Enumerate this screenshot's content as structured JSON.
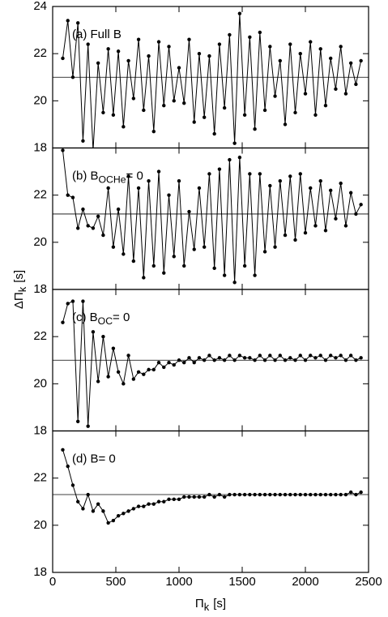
{
  "chart_data": [
    {
      "type": "line",
      "label": {
        "text": "(a) Full B"
      },
      "reference_line": 21.0,
      "ylim": [
        18,
        24
      ],
      "yticks": [
        18,
        20,
        22,
        24
      ],
      "x": [
        80,
        120,
        160,
        200,
        240,
        280,
        320,
        360,
        400,
        440,
        480,
        520,
        560,
        600,
        640,
        680,
        720,
        760,
        800,
        840,
        880,
        920,
        960,
        1000,
        1040,
        1080,
        1120,
        1160,
        1200,
        1240,
        1280,
        1320,
        1360,
        1400,
        1440,
        1480,
        1520,
        1560,
        1600,
        1640,
        1680,
        1720,
        1760,
        1800,
        1840,
        1880,
        1920,
        1960,
        2000,
        2040,
        2080,
        2120,
        2160,
        2200,
        2240,
        2280,
        2320,
        2360,
        2400,
        2440
      ],
      "series": [
        {
          "color": "#000000",
          "values": [
            21.8,
            23.4,
            21.0,
            23.3,
            18.3,
            22.4,
            17.9,
            21.6,
            19.5,
            22.2,
            19.4,
            22.1,
            18.9,
            21.7,
            20.1,
            22.6,
            19.6,
            21.9,
            18.7,
            22.5,
            19.8,
            22.3,
            20.0,
            21.4,
            19.9,
            22.6,
            19.1,
            22.0,
            19.3,
            21.9,
            18.6,
            22.4,
            19.7,
            22.8,
            18.2,
            23.7,
            19.4,
            22.7,
            18.8,
            22.9,
            19.6,
            22.3,
            20.2,
            21.7,
            19.0,
            22.4,
            19.5,
            22.0,
            20.3,
            22.5,
            19.4,
            22.2,
            19.8,
            21.8,
            20.5,
            22.3,
            20.3,
            21.6,
            20.7,
            21.7
          ]
        }
      ]
    },
    {
      "type": "line",
      "label": {
        "text": "(b) B",
        "sub": "OCHe",
        "after": "= 0"
      },
      "reference_line": 21.2,
      "ylim": [
        18,
        24
      ],
      "yticks": [
        18,
        20,
        22
      ],
      "x": [
        80,
        120,
        160,
        200,
        240,
        280,
        320,
        360,
        400,
        440,
        480,
        520,
        560,
        600,
        640,
        680,
        720,
        760,
        800,
        840,
        880,
        920,
        960,
        1000,
        1040,
        1080,
        1120,
        1160,
        1200,
        1240,
        1280,
        1320,
        1360,
        1400,
        1440,
        1480,
        1520,
        1560,
        1600,
        1640,
        1680,
        1720,
        1760,
        1800,
        1840,
        1880,
        1920,
        1960,
        2000,
        2040,
        2080,
        2120,
        2160,
        2200,
        2240,
        2280,
        2320,
        2360,
        2400,
        2440
      ],
      "series": [
        {
          "color": "#000000",
          "values": [
            23.9,
            22.0,
            21.9,
            20.6,
            21.4,
            20.7,
            20.6,
            21.1,
            20.3,
            22.3,
            19.8,
            21.4,
            19.5,
            22.8,
            19.2,
            22.3,
            18.5,
            22.6,
            19.0,
            23.0,
            18.7,
            22.0,
            19.4,
            22.6,
            19.0,
            21.3,
            19.7,
            22.3,
            19.8,
            22.9,
            18.9,
            23.1,
            18.6,
            23.5,
            18.3,
            23.6,
            19.0,
            22.9,
            18.6,
            22.9,
            19.6,
            22.4,
            19.8,
            22.6,
            20.3,
            22.8,
            20.1,
            22.9,
            20.4,
            22.3,
            20.7,
            22.6,
            20.5,
            22.2,
            21.0,
            22.5,
            20.7,
            22.1,
            21.2,
            21.6
          ]
        }
      ]
    },
    {
      "type": "line",
      "label": {
        "text": "(c) B",
        "sub": "OC",
        "after": "= 0"
      },
      "reference_line": 21.0,
      "ylim": [
        18,
        24
      ],
      "yticks": [
        18,
        20,
        22
      ],
      "x": [
        80,
        120,
        160,
        200,
        240,
        280,
        320,
        360,
        400,
        440,
        480,
        520,
        560,
        600,
        640,
        680,
        720,
        760,
        800,
        840,
        880,
        920,
        960,
        1000,
        1040,
        1080,
        1120,
        1160,
        1200,
        1240,
        1280,
        1320,
        1360,
        1400,
        1440,
        1480,
        1520,
        1560,
        1600,
        1640,
        1680,
        1720,
        1760,
        1800,
        1840,
        1880,
        1920,
        1960,
        2000,
        2040,
        2080,
        2120,
        2160,
        2200,
        2240,
        2280,
        2320,
        2360,
        2400,
        2440
      ],
      "series": [
        {
          "color": "#000000",
          "values": [
            22.6,
            23.4,
            23.5,
            18.4,
            23.5,
            18.2,
            22.2,
            20.1,
            22.0,
            20.3,
            21.5,
            20.5,
            20.0,
            21.2,
            20.2,
            20.5,
            20.4,
            20.6,
            20.6,
            20.9,
            20.7,
            20.9,
            20.8,
            21.0,
            20.9,
            21.1,
            20.9,
            21.1,
            21.0,
            21.2,
            21.0,
            21.1,
            21.0,
            21.2,
            21.0,
            21.2,
            21.1,
            21.1,
            21.0,
            21.2,
            21.0,
            21.2,
            21.0,
            21.2,
            21.0,
            21.1,
            21.0,
            21.2,
            21.0,
            21.2,
            21.1,
            21.2,
            21.0,
            21.2,
            21.1,
            21.2,
            21.0,
            21.2,
            21.0,
            21.1
          ]
        }
      ]
    },
    {
      "type": "line",
      "label": {
        "text": "(d) B= 0"
      },
      "reference_line": 21.3,
      "ylim": [
        18,
        24
      ],
      "yticks": [
        18,
        20,
        22
      ],
      "xlim": [
        0,
        2500
      ],
      "xticks": [
        0,
        500,
        1000,
        1500,
        2000,
        2500
      ],
      "xlabel": {
        "main": "Π",
        "sub": "k",
        "unit": "[s]"
      },
      "ylabel": {
        "main": "ΔΠ",
        "sub": "k",
        "unit": "[s]"
      },
      "x": [
        80,
        120,
        160,
        200,
        240,
        280,
        320,
        360,
        400,
        440,
        480,
        520,
        560,
        600,
        640,
        680,
        720,
        760,
        800,
        840,
        880,
        920,
        960,
        1000,
        1040,
        1080,
        1120,
        1160,
        1200,
        1240,
        1280,
        1320,
        1360,
        1400,
        1440,
        1480,
        1520,
        1560,
        1600,
        1640,
        1680,
        1720,
        1760,
        1800,
        1840,
        1880,
        1920,
        1960,
        2000,
        2040,
        2080,
        2120,
        2160,
        2200,
        2240,
        2280,
        2320,
        2360,
        2400,
        2440
      ],
      "series": [
        {
          "color": "#000000",
          "values": [
            23.2,
            22.5,
            21.7,
            21.0,
            20.7,
            21.3,
            20.6,
            20.9,
            20.6,
            20.1,
            20.2,
            20.4,
            20.5,
            20.6,
            20.7,
            20.8,
            20.8,
            20.9,
            20.9,
            21.0,
            21.0,
            21.1,
            21.1,
            21.1,
            21.2,
            21.2,
            21.2,
            21.2,
            21.2,
            21.3,
            21.2,
            21.3,
            21.2,
            21.3,
            21.3,
            21.3,
            21.3,
            21.3,
            21.3,
            21.3,
            21.3,
            21.3,
            21.3,
            21.3,
            21.3,
            21.3,
            21.3,
            21.3,
            21.3,
            21.3,
            21.3,
            21.3,
            21.3,
            21.3,
            21.3,
            21.3,
            21.3,
            21.4,
            21.3,
            21.4
          ]
        }
      ]
    }
  ]
}
